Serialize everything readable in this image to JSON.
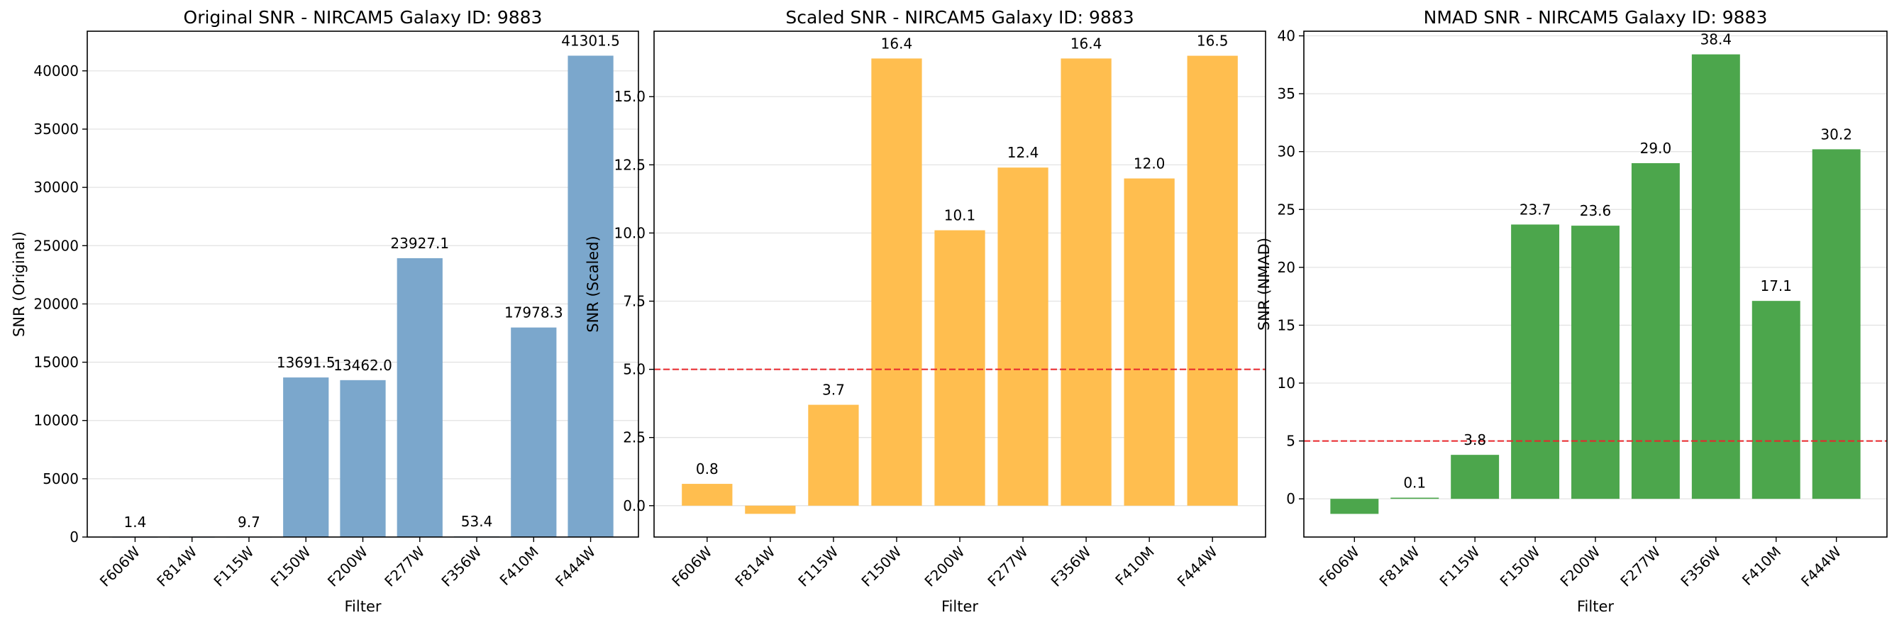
{
  "chart_data": [
    {
      "type": "bar",
      "title": "Original SNR - NIRCAM5 Galaxy ID: 9883",
      "xlabel": "Filter",
      "ylabel": "SNR (Original)",
      "categories": [
        "F606W",
        "F814W",
        "F115W",
        "F150W",
        "F200W",
        "F277W",
        "F356W",
        "F410M",
        "F444W"
      ],
      "values": [
        1.4,
        0.0,
        9.7,
        13691.5,
        13462.0,
        23927.1,
        53.4,
        17978.3,
        41301.5
      ],
      "labels": [
        "1.4",
        "",
        "9.7",
        "13691.5",
        "13462.0",
        "23927.1",
        "53.4",
        "17978.3",
        "41301.5"
      ],
      "ylim": [
        0,
        43400
      ],
      "yticks": [
        0,
        5000,
        10000,
        15000,
        20000,
        25000,
        30000,
        35000,
        40000
      ],
      "ytick_labels": [
        "0",
        "5000",
        "10000",
        "15000",
        "20000",
        "25000",
        "30000",
        "35000",
        "40000"
      ],
      "color": "#7BA7CC",
      "grid": "horizontal"
    },
    {
      "type": "bar",
      "title": "Scaled SNR - NIRCAM5 Galaxy ID: 9883",
      "xlabel": "Filter",
      "ylabel": "SNR (Scaled)",
      "categories": [
        "F606W",
        "F814W",
        "F115W",
        "F150W",
        "F200W",
        "F277W",
        "F356W",
        "F410M",
        "F444W"
      ],
      "values": [
        0.8,
        -0.3,
        3.7,
        16.4,
        10.1,
        12.4,
        16.4,
        12.0,
        16.5
      ],
      "labels": [
        "0.8",
        "",
        "3.7",
        "16.4",
        "10.1",
        "12.4",
        "16.4",
        "12.0",
        "16.5"
      ],
      "ylim": [
        -1.15,
        17.4
      ],
      "yticks": [
        0,
        2.5,
        5,
        7.5,
        10,
        12.5,
        15
      ],
      "ytick_labels": [
        "0.0",
        "2.5",
        "5.0",
        "7.5",
        "10.0",
        "12.5",
        "15.0"
      ],
      "threshold": 5,
      "color": "#FFBE4F",
      "grid": "horizontal"
    },
    {
      "type": "bar",
      "title": "NMAD SNR - NIRCAM5 Galaxy ID: 9883",
      "xlabel": "Filter",
      "ylabel": "SNR (NMAD)",
      "categories": [
        "F606W",
        "F814W",
        "F115W",
        "F150W",
        "F200W",
        "F277W",
        "F356W",
        "F410M",
        "F444W"
      ],
      "values": [
        -1.3,
        0.1,
        3.8,
        23.7,
        23.6,
        29.0,
        38.4,
        17.1,
        30.2
      ],
      "labels": [
        "",
        "0.1",
        "3.8",
        "23.7",
        "23.6",
        "29.0",
        "38.4",
        "17.1",
        "30.2"
      ],
      "ylim": [
        -3.3,
        40.4
      ],
      "yticks": [
        0,
        5,
        10,
        15,
        20,
        25,
        30,
        35,
        40
      ],
      "ytick_labels": [
        "0",
        "5",
        "10",
        "15",
        "20",
        "25",
        "30",
        "35",
        "40"
      ],
      "threshold": 5,
      "color": "#4CA64C",
      "grid": "horizontal"
    }
  ]
}
